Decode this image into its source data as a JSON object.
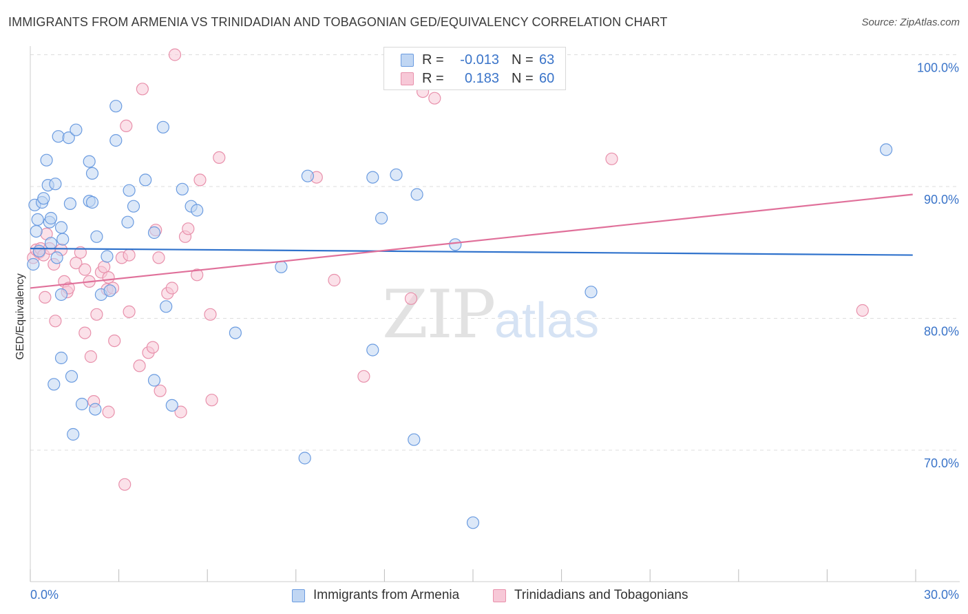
{
  "title": "IMMIGRANTS FROM ARMENIA VS TRINIDADIAN AND TOBAGONIAN GED/EQUIVALENCY CORRELATION CHART",
  "source": "Source: ZipAtlas.com",
  "legend_top": {
    "rows": [
      {
        "r_label": "R =",
        "r_value": "-0.013",
        "n_label": "N =",
        "n_value": "63"
      },
      {
        "r_label": "R =",
        "r_value": "0.183",
        "n_label": "N =",
        "n_value": "60"
      }
    ]
  },
  "legend_bottom": {
    "items": [
      "Immigrants from Armenia",
      "Trinidadians and Tobagonians"
    ]
  },
  "colors": {
    "blue_fill": "#c0d6f3",
    "blue_stroke": "#6a9be0",
    "blue_line": "#2f72cc",
    "pink_fill": "#f7c8d7",
    "pink_stroke": "#e890ab",
    "pink_line": "#e0709a",
    "tick_label": "#3a74c9",
    "grid": "#dddddd"
  },
  "chart_data": {
    "type": "scatter",
    "title": "IMMIGRANTS FROM ARMENIA VS TRINIDADIAN AND TOBAGONIAN GED/EQUIVALENCY CORRELATION CHART",
    "xlabel": "",
    "ylabel": "GED/Equivalency",
    "xlim": [
      0,
      30
    ],
    "ylim": [
      62,
      102
    ],
    "x_tick_labels": [
      {
        "value": 0,
        "label": "0.0%"
      },
      {
        "value": 30,
        "label": "30.0%"
      }
    ],
    "y_tick_labels": [
      {
        "value": 100,
        "label": "100.0%"
      },
      {
        "value": 90,
        "label": "90.0%"
      },
      {
        "value": 80,
        "label": "80.0%"
      },
      {
        "value": 70,
        "label": "70.0%"
      }
    ],
    "grid": true,
    "legend_position": "top-center",
    "watermark": "ZIPatlas",
    "series": [
      {
        "name": "Immigrants from Armenia",
        "color": "#6a9be0",
        "trend": {
          "x": [
            0,
            29.9
          ],
          "y": [
            85.3,
            84.8
          ]
        },
        "points": [
          [
            0.1,
            84.1
          ],
          [
            0.15,
            88.6
          ],
          [
            0.2,
            86.6
          ],
          [
            0.25,
            87.5
          ],
          [
            0.3,
            85.1
          ],
          [
            0.4,
            88.8
          ],
          [
            0.45,
            89.1
          ],
          [
            0.55,
            92.0
          ],
          [
            0.6,
            90.1
          ],
          [
            0.65,
            87.3
          ],
          [
            0.7,
            87.6
          ],
          [
            0.7,
            85.7
          ],
          [
            0.85,
            90.2
          ],
          [
            0.9,
            84.6
          ],
          [
            0.95,
            93.8
          ],
          [
            1.05,
            86.9
          ],
          [
            1.1,
            86.0
          ],
          [
            1.3,
            93.7
          ],
          [
            1.35,
            88.7
          ],
          [
            1.55,
            94.3
          ],
          [
            1.05,
            81.8
          ],
          [
            1.05,
            77.0
          ],
          [
            0.8,
            75.0
          ],
          [
            1.4,
            75.6
          ],
          [
            1.75,
            73.5
          ],
          [
            1.45,
            71.2
          ],
          [
            2.0,
            88.9
          ],
          [
            2.1,
            88.8
          ],
          [
            2.0,
            91.9
          ],
          [
            2.1,
            91.0
          ],
          [
            2.25,
            86.2
          ],
          [
            2.4,
            81.8
          ],
          [
            2.6,
            84.7
          ],
          [
            2.7,
            82.1
          ],
          [
            2.9,
            96.1
          ],
          [
            2.9,
            93.5
          ],
          [
            2.2,
            73.1
          ],
          [
            3.35,
            89.7
          ],
          [
            3.3,
            87.3
          ],
          [
            3.5,
            88.5
          ],
          [
            3.9,
            90.5
          ],
          [
            4.2,
            86.5
          ],
          [
            4.6,
            80.9
          ],
          [
            4.5,
            94.5
          ],
          [
            4.2,
            75.3
          ],
          [
            4.8,
            73.4
          ],
          [
            5.15,
            89.8
          ],
          [
            5.45,
            88.5
          ],
          [
            5.65,
            88.2
          ],
          [
            6.95,
            78.9
          ],
          [
            8.5,
            83.9
          ],
          [
            9.3,
            69.4
          ],
          [
            9.4,
            90.8
          ],
          [
            11.6,
            90.7
          ],
          [
            11.6,
            77.6
          ],
          [
            11.9,
            87.6
          ],
          [
            12.4,
            90.9
          ],
          [
            13.1,
            89.4
          ],
          [
            13.0,
            70.8
          ],
          [
            14.4,
            85.6
          ],
          [
            15.0,
            64.5
          ],
          [
            19.0,
            82.0
          ],
          [
            29.0,
            92.8
          ]
        ]
      },
      {
        "name": "Trinidadians and Tobagonians",
        "color": "#e890ab",
        "trend": {
          "x": [
            0,
            29.9
          ],
          "y": [
            82.3,
            89.4
          ]
        },
        "points": [
          [
            0.1,
            84.6
          ],
          [
            0.2,
            85.2
          ],
          [
            0.3,
            85.0
          ],
          [
            0.35,
            85.3
          ],
          [
            0.45,
            84.8
          ],
          [
            0.5,
            81.6
          ],
          [
            0.55,
            86.4
          ],
          [
            0.65,
            85.3
          ],
          [
            0.8,
            84.1
          ],
          [
            0.85,
            79.8
          ],
          [
            1.05,
            85.2
          ],
          [
            1.15,
            82.8
          ],
          [
            1.25,
            82.0
          ],
          [
            1.3,
            82.3
          ],
          [
            1.55,
            84.2
          ],
          [
            1.7,
            85.0
          ],
          [
            1.85,
            83.7
          ],
          [
            1.85,
            78.9
          ],
          [
            2.0,
            82.8
          ],
          [
            2.05,
            77.1
          ],
          [
            2.15,
            73.7
          ],
          [
            2.25,
            80.3
          ],
          [
            2.4,
            83.5
          ],
          [
            2.5,
            83.9
          ],
          [
            2.6,
            82.2
          ],
          [
            2.65,
            72.9
          ],
          [
            2.65,
            83.1
          ],
          [
            2.8,
            82.3
          ],
          [
            2.85,
            78.3
          ],
          [
            3.1,
            84.6
          ],
          [
            3.2,
            67.4
          ],
          [
            3.25,
            94.6
          ],
          [
            3.35,
            84.8
          ],
          [
            3.35,
            80.5
          ],
          [
            3.7,
            76.4
          ],
          [
            3.8,
            97.4
          ],
          [
            4.0,
            77.4
          ],
          [
            4.15,
            77.8
          ],
          [
            4.25,
            86.7
          ],
          [
            4.35,
            84.6
          ],
          [
            4.4,
            74.5
          ],
          [
            4.65,
            81.9
          ],
          [
            4.8,
            82.3
          ],
          [
            4.9,
            100.0
          ],
          [
            5.1,
            72.9
          ],
          [
            5.25,
            86.2
          ],
          [
            5.35,
            86.8
          ],
          [
            5.65,
            83.3
          ],
          [
            5.75,
            90.5
          ],
          [
            6.1,
            80.3
          ],
          [
            6.15,
            73.8
          ],
          [
            6.4,
            92.2
          ],
          [
            9.7,
            90.7
          ],
          [
            10.3,
            82.9
          ],
          [
            11.3,
            75.6
          ],
          [
            12.9,
            81.5
          ],
          [
            13.3,
            97.2
          ],
          [
            13.7,
            96.7
          ],
          [
            19.7,
            92.1
          ],
          [
            28.2,
            80.6
          ]
        ]
      }
    ]
  }
}
